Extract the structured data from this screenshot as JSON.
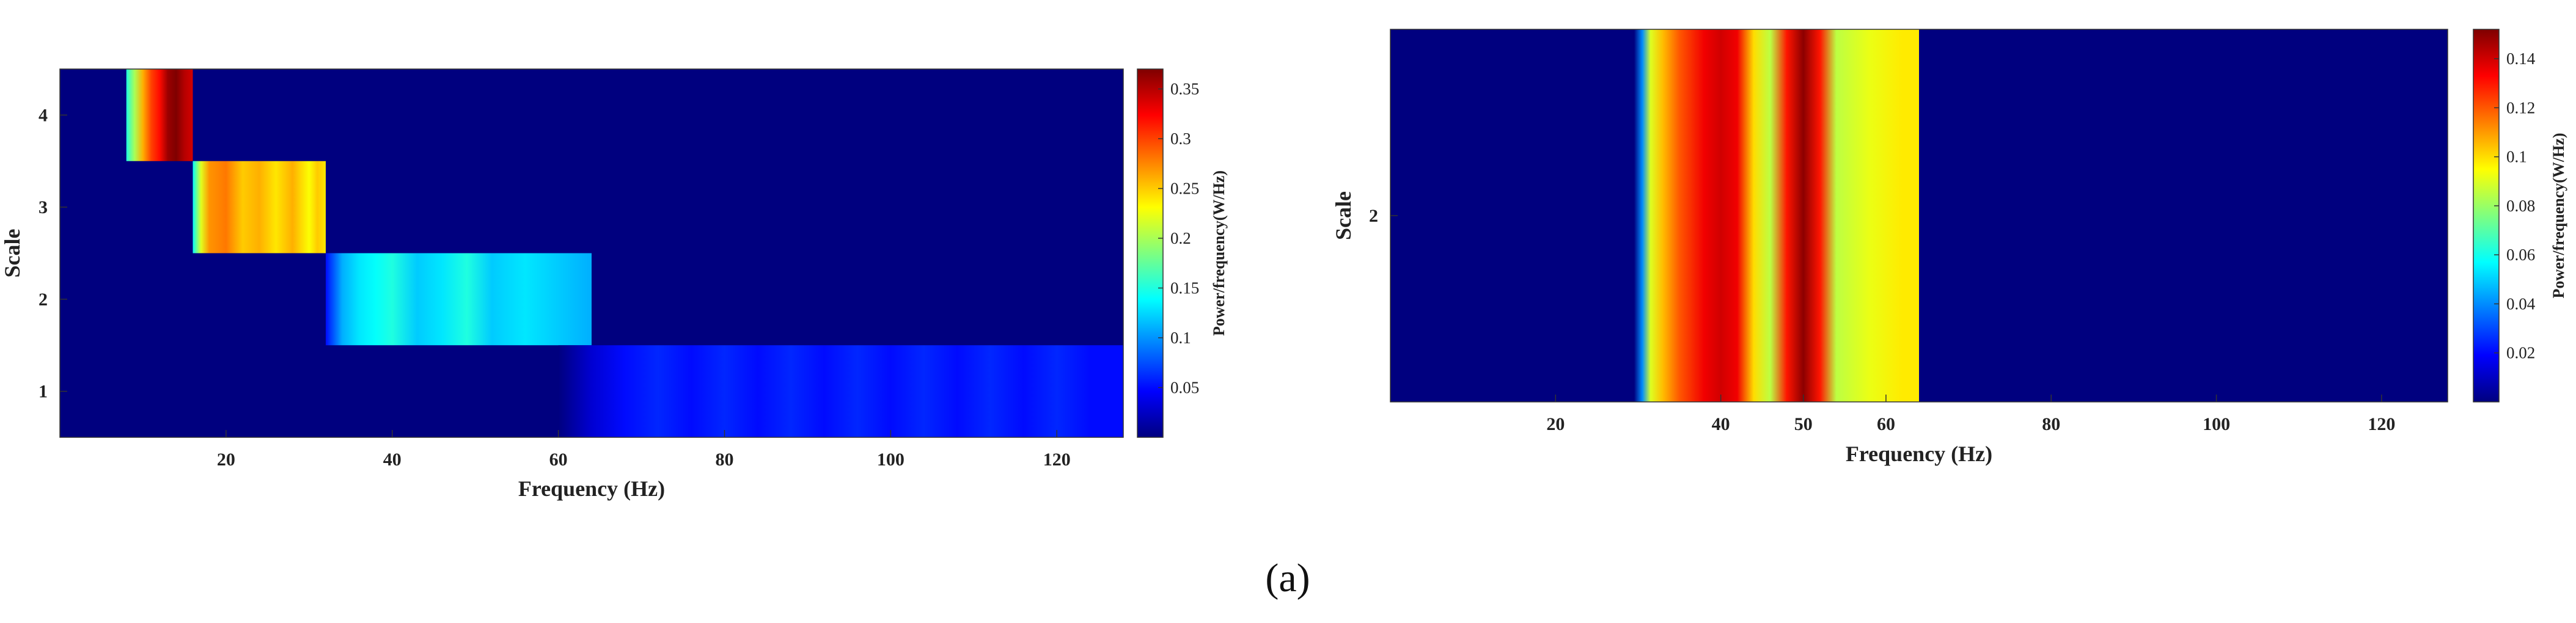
{
  "caption": "(a)",
  "colormap": [
    "#00007f",
    "#0000ff",
    "#007fff",
    "#00ffff",
    "#7fff7f",
    "#ffff00",
    "#ff7f00",
    "#ff0000",
    "#7f0000"
  ],
  "chart_data": [
    {
      "type": "heatmap",
      "xlabel": "Frequency (Hz)",
      "ylabel": "Scale",
      "colorbar_label": "Power/frequency(W/Hz)",
      "xlim": [
        0,
        128
      ],
      "x_ticks": [
        20,
        40,
        60,
        80,
        100,
        120
      ],
      "y_ticks": [
        1,
        2,
        3,
        4
      ],
      "clim": [
        0,
        0.37
      ],
      "colorbar_ticks": [
        0.05,
        0.1,
        0.15,
        0.2,
        0.25,
        0.3,
        0.35
      ],
      "rows": [
        {
          "scale": 4,
          "bands": [
            {
              "x": 8,
              "power": 0.15
            },
            {
              "x": 9,
              "power": 0.2
            },
            {
              "x": 10,
              "power": 0.26
            },
            {
              "x": 11,
              "power": 0.3
            },
            {
              "x": 12,
              "power": 0.32
            },
            {
              "x": 13,
              "power": 0.36
            },
            {
              "x": 14,
              "power": 0.37
            },
            {
              "x": 15,
              "power": 0.35
            },
            {
              "x": 16,
              "power": 0.34
            }
          ]
        },
        {
          "scale": 3,
          "bands": [
            {
              "x": 16,
              "power": 0.14
            },
            {
              "x": 17,
              "power": 0.22
            },
            {
              "x": 18,
              "power": 0.27
            },
            {
              "x": 20,
              "power": 0.28
            },
            {
              "x": 22,
              "power": 0.25
            },
            {
              "x": 24,
              "power": 0.26
            },
            {
              "x": 26,
              "power": 0.24
            },
            {
              "x": 28,
              "power": 0.26
            },
            {
              "x": 30,
              "power": 0.23
            },
            {
              "x": 31,
              "power": 0.25
            },
            {
              "x": 32,
              "power": 0.24
            }
          ]
        },
        {
          "scale": 2,
          "bands": [
            {
              "x": 32,
              "power": 0.05
            },
            {
              "x": 34,
              "power": 0.11
            },
            {
              "x": 36,
              "power": 0.13
            },
            {
              "x": 38,
              "power": 0.14
            },
            {
              "x": 40,
              "power": 0.15
            },
            {
              "x": 43,
              "power": 0.12
            },
            {
              "x": 46,
              "power": 0.13
            },
            {
              "x": 49,
              "power": 0.15
            },
            {
              "x": 52,
              "power": 0.12
            },
            {
              "x": 56,
              "power": 0.13
            },
            {
              "x": 60,
              "power": 0.12
            },
            {
              "x": 64,
              "power": 0.11
            }
          ]
        },
        {
          "scale": 1,
          "bands": [
            {
              "x": 60,
              "power": 0.0
            },
            {
              "x": 64,
              "power": 0.03
            },
            {
              "x": 68,
              "power": 0.05
            },
            {
              "x": 72,
              "power": 0.06
            },
            {
              "x": 76,
              "power": 0.05
            },
            {
              "x": 80,
              "power": 0.06
            },
            {
              "x": 84,
              "power": 0.05
            },
            {
              "x": 88,
              "power": 0.06
            },
            {
              "x": 92,
              "power": 0.05
            },
            {
              "x": 96,
              "power": 0.06
            },
            {
              "x": 100,
              "power": 0.05
            },
            {
              "x": 104,
              "power": 0.06
            },
            {
              "x": 108,
              "power": 0.05
            },
            {
              "x": 112,
              "power": 0.06
            },
            {
              "x": 116,
              "power": 0.05
            },
            {
              "x": 120,
              "power": 0.06
            },
            {
              "x": 124,
              "power": 0.05
            },
            {
              "x": 128,
              "power": 0.05
            }
          ]
        }
      ]
    },
    {
      "type": "heatmap",
      "xlabel": "Frequency (Hz)",
      "ylabel": "Scale",
      "colorbar_label": "Power/frequency(W/Hz)",
      "xlim": [
        0,
        128
      ],
      "x_ticks": [
        20,
        40,
        50,
        60,
        80,
        100,
        120
      ],
      "y_ticks": [
        2
      ],
      "clim": [
        0,
        0.152
      ],
      "colorbar_ticks": [
        0.02,
        0.04,
        0.06,
        0.08,
        0.1,
        0.12,
        0.14
      ],
      "rows": [
        {
          "scale": 2,
          "bands": [
            {
              "x": 29.5,
              "power": 0.0
            },
            {
              "x": 30.5,
              "power": 0.04
            },
            {
              "x": 31.5,
              "power": 0.09
            },
            {
              "x": 33,
              "power": 0.105
            },
            {
              "x": 35,
              "power": 0.12
            },
            {
              "x": 38,
              "power": 0.135
            },
            {
              "x": 40,
              "power": 0.14
            },
            {
              "x": 42,
              "power": 0.135
            },
            {
              "x": 44,
              "power": 0.1
            },
            {
              "x": 46,
              "power": 0.085
            },
            {
              "x": 48,
              "power": 0.13
            },
            {
              "x": 50,
              "power": 0.15
            },
            {
              "x": 52,
              "power": 0.13
            },
            {
              "x": 54,
              "power": 0.085
            },
            {
              "x": 58,
              "power": 0.092
            },
            {
              "x": 62,
              "power": 0.098
            },
            {
              "x": 64,
              "power": 0.098
            }
          ]
        }
      ]
    }
  ]
}
